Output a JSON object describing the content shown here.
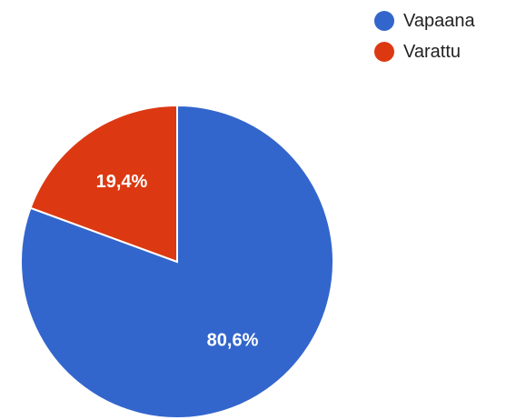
{
  "chart_data": {
    "type": "pie",
    "title": "",
    "legend_position": "top-right",
    "start_angle_deg": 0,
    "direction": "clockwise",
    "slices": [
      {
        "name": "Vapaana",
        "value": 80.6,
        "label": "80,6%",
        "color": "#3366cc"
      },
      {
        "name": "Varattu",
        "value": 19.4,
        "label": "19,4%",
        "color": "#dc3912"
      }
    ]
  }
}
